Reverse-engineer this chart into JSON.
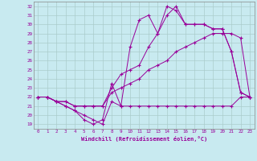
{
  "xlabel": "Windchill (Refroidissement éolien,°C)",
  "bg_color": "#c8eaf0",
  "grid_color": "#aacccc",
  "line_color": "#990099",
  "xmin": -0.5,
  "xmax": 23.5,
  "ymin": 18.5,
  "ymax": 32.5,
  "yticks": [
    19,
    20,
    21,
    22,
    23,
    24,
    25,
    26,
    27,
    28,
    29,
    30,
    31,
    32
  ],
  "xticks": [
    0,
    1,
    2,
    3,
    4,
    5,
    6,
    7,
    8,
    9,
    10,
    11,
    12,
    13,
    14,
    15,
    16,
    17,
    18,
    19,
    20,
    21,
    22,
    23
  ],
  "line1_x": [
    0,
    1,
    2,
    3,
    4,
    5,
    6,
    7,
    8,
    9,
    10,
    11,
    12,
    13,
    14,
    15,
    16,
    17,
    18,
    19,
    20,
    21,
    22,
    23
  ],
  "line1_y": [
    22,
    22,
    21.5,
    21,
    20.5,
    20,
    19.5,
    19,
    21.5,
    21,
    21,
    21,
    21,
    21,
    21,
    21,
    21,
    21,
    21,
    21,
    21,
    21,
    22,
    22
  ],
  "line2_x": [
    0,
    1,
    2,
    3,
    4,
    5,
    6,
    7,
    8,
    9,
    10,
    11,
    12,
    13,
    14,
    15,
    16,
    17,
    18,
    19,
    20,
    21,
    22,
    23
  ],
  "line2_y": [
    22,
    22,
    21.5,
    21.5,
    21,
    21,
    21,
    21,
    22.5,
    23,
    23.5,
    24,
    25,
    25.5,
    26,
    27,
    27.5,
    28,
    28.5,
    29,
    29,
    29,
    28.5,
    22
  ],
  "line3_x": [
    0,
    1,
    2,
    3,
    4,
    5,
    6,
    7,
    8,
    9,
    10,
    11,
    12,
    13,
    14,
    15,
    16,
    17,
    18,
    19,
    20,
    21,
    22,
    23
  ],
  "line3_y": [
    22,
    22,
    21.5,
    21.5,
    21,
    21,
    21,
    21,
    23,
    24.5,
    25,
    25.5,
    27.5,
    29,
    31,
    32,
    30,
    30,
    30,
    29.5,
    29.5,
    27,
    22.5,
    22
  ],
  "line4_x": [
    0,
    1,
    2,
    3,
    4,
    5,
    6,
    7,
    8,
    9,
    10,
    11,
    12,
    13,
    14,
    15,
    16,
    17,
    18,
    19,
    20,
    21,
    22,
    23
  ],
  "line4_y": [
    22,
    22,
    21.5,
    21,
    20.5,
    19.5,
    19,
    19.5,
    23.5,
    21,
    27.5,
    30.5,
    31,
    29,
    32,
    31.5,
    30,
    30,
    30,
    29.5,
    29.5,
    27,
    22.5,
    22
  ]
}
